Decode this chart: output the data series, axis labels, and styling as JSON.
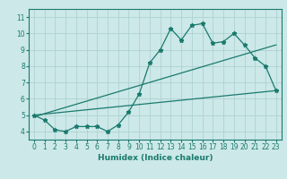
{
  "xlabel": "Humidex (Indice chaleur)",
  "xlim": [
    -0.5,
    23.5
  ],
  "ylim": [
    3.5,
    11.5
  ],
  "xticks": [
    0,
    1,
    2,
    3,
    4,
    5,
    6,
    7,
    8,
    9,
    10,
    11,
    12,
    13,
    14,
    15,
    16,
    17,
    18,
    19,
    20,
    21,
    22,
    23
  ],
  "yticks": [
    4,
    5,
    6,
    7,
    8,
    9,
    10,
    11
  ],
  "bg_color": "#cce8e8",
  "line_color": "#1a7a6e",
  "grid_color": "#a8cece",
  "line1_x": [
    0,
    1,
    2,
    3,
    4,
    5,
    6,
    7,
    8,
    9,
    10,
    11,
    12,
    13,
    14,
    15,
    16,
    17,
    18,
    19,
    20,
    21,
    22,
    23
  ],
  "line1_y": [
    5.0,
    4.7,
    4.1,
    4.0,
    4.3,
    4.3,
    4.3,
    4.0,
    4.4,
    5.2,
    6.3,
    8.2,
    9.0,
    10.3,
    9.6,
    10.5,
    10.6,
    9.4,
    9.5,
    10.0,
    9.3,
    8.5,
    8.0,
    6.5
  ],
  "line2_x": [
    0,
    23
  ],
  "line2_y": [
    5.0,
    6.5
  ],
  "line3_x": [
    0,
    23
  ],
  "line3_y": [
    4.9,
    9.3
  ],
  "tick_fontsize": 5.5,
  "xlabel_fontsize": 6.5,
  "xlabel_fontweight": "bold"
}
